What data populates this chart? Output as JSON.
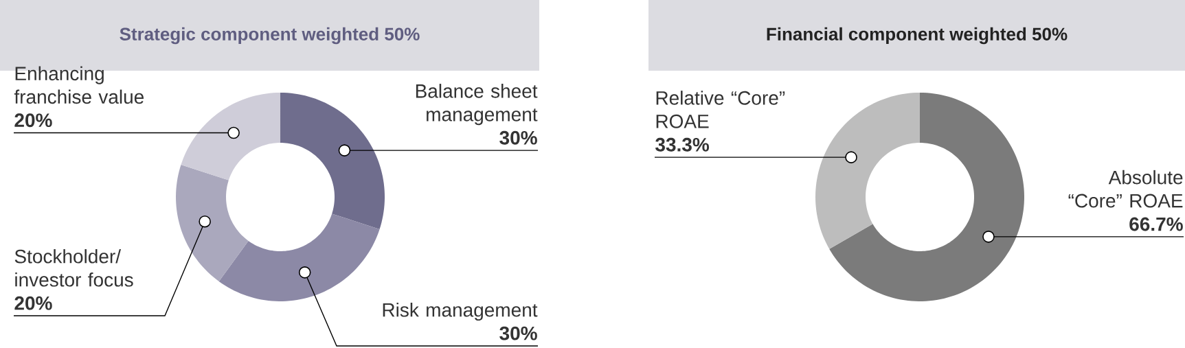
{
  "chart_data": [
    {
      "type": "donut",
      "title": "Strategic component weighted 50%",
      "categories": [
        "Balance sheet management",
        "Risk management",
        "Stockholder/ investor focus",
        "Enhancing franchise value"
      ],
      "values": [
        30,
        30,
        20,
        20
      ],
      "colors": [
        "#6f6d8d",
        "#8c89a6",
        "#aaa8bd",
        "#cfcdd9"
      ],
      "value_labels": [
        "30%",
        "30%",
        "20%",
        "20%"
      ]
    },
    {
      "type": "donut",
      "title": "Financial component weighted 50%",
      "categories": [
        "Absolute “Core” ROAE",
        "Relative “Core” ROAE"
      ],
      "values": [
        66.7,
        33.3
      ],
      "colors": [
        "#7b7b7b",
        "#bdbdbd"
      ],
      "value_labels": [
        "66.7%",
        "33.3%"
      ]
    }
  ]
}
